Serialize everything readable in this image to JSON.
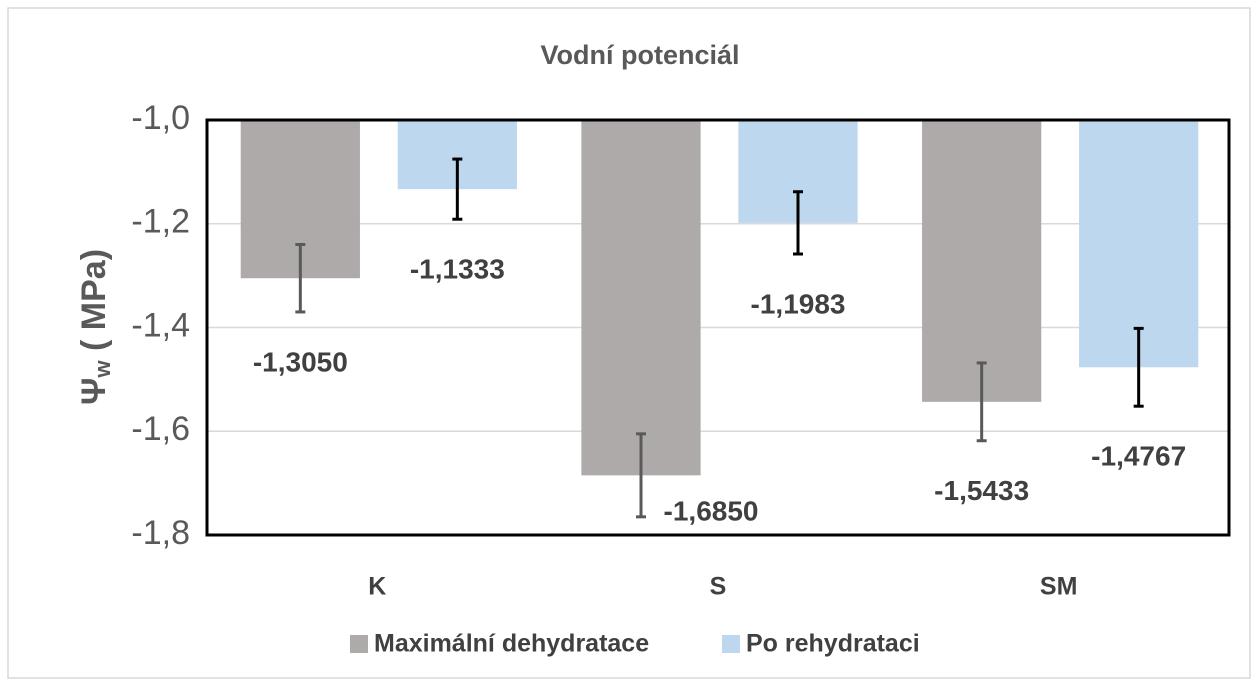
{
  "chart_data": {
    "type": "bar",
    "title": "Vodní potenciál",
    "ylabel": {
      "symbol": "Ψ",
      "subscript": "w",
      "unit": " ( MPa)"
    },
    "categories": [
      "K",
      "S",
      "SM"
    ],
    "series": [
      {
        "name": "Maximální dehydratace",
        "color": "#aeaaaa",
        "error_color": "#595959",
        "values": [
          -1.305,
          -1.685,
          -1.5433
        ],
        "value_labels": [
          "-1,3050",
          "-1,6850",
          "-1,5433"
        ],
        "errors": [
          0.065,
          0.08,
          0.075
        ]
      },
      {
        "name": "Po rehydrataci",
        "color": "#bdd7ee",
        "error_color": "#000000",
        "values": [
          -1.1333,
          -1.1983,
          -1.4767
        ],
        "value_labels": [
          "-1,1333",
          "-1,1983",
          "-1,4767"
        ],
        "errors": [
          0.058,
          0.06,
          0.075
        ]
      }
    ],
    "ylim": [
      -1.8,
      -1.0
    ],
    "yticks": [
      {
        "value": -1.0,
        "label": "-1,0"
      },
      {
        "value": -1.2,
        "label": "-1,2"
      },
      {
        "value": -1.4,
        "label": "-1,4"
      },
      {
        "value": -1.6,
        "label": "-1,6"
      },
      {
        "value": -1.8,
        "label": "-1,8"
      }
    ],
    "grid": true,
    "legend": "bottom"
  }
}
